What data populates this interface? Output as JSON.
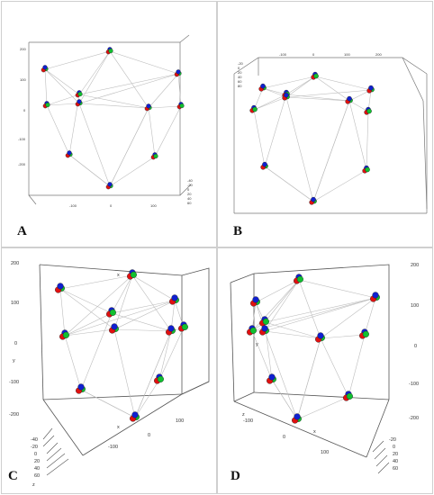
{
  "panels": [
    {
      "id": "A",
      "label": "A",
      "view": "low-resolution frontal 3D landmark plot",
      "y_ticks": [
        "200",
        "100",
        "0",
        "-100",
        "-200"
      ],
      "x_ticks": [
        "-100",
        "0",
        "100"
      ],
      "z_ticks": [
        "-40",
        "-20",
        "0",
        "20",
        "40",
        "60"
      ],
      "axis_letters": {
        "x": "",
        "y": "",
        "z": ""
      }
    },
    {
      "id": "B",
      "label": "B",
      "view": "low-resolution top-tilted 3D landmark plot",
      "y_ticks": [],
      "x_ticks": [
        "-100",
        "0",
        "100",
        "200"
      ],
      "z_ticks": [
        "-20",
        "0",
        "20",
        "40",
        "60",
        "80"
      ],
      "axis_letters": {
        "x": "",
        "y": "",
        "z": ""
      }
    },
    {
      "id": "C",
      "label": "C",
      "view": "frontal 3D landmark plot",
      "y_ticks": [
        "200",
        "100",
        "0",
        "-100",
        "-200"
      ],
      "x_ticks": [
        "-100",
        "0",
        "100"
      ],
      "z_ticks": [
        "-40",
        "-20",
        "0",
        "20",
        "40",
        "60"
      ],
      "axis_letters": {
        "x": "x",
        "y": "y",
        "z": "z"
      }
    },
    {
      "id": "D",
      "label": "D",
      "view": "rotated 3D landmark plot",
      "y_ticks": [
        "200",
        "100",
        "0",
        "-100",
        "-200"
      ],
      "x_ticks": [
        "-100",
        "0",
        "100"
      ],
      "z_ticks": [
        "-20",
        "0",
        "20",
        "40",
        "60"
      ],
      "axis_letters": {
        "x": "x",
        "y": "y",
        "z": "z"
      }
    }
  ],
  "colors": {
    "red": "#e01010",
    "green": "#10c030",
    "blue": "#1020d0",
    "edge": "#bdbdbd",
    "box": "#555555"
  }
}
